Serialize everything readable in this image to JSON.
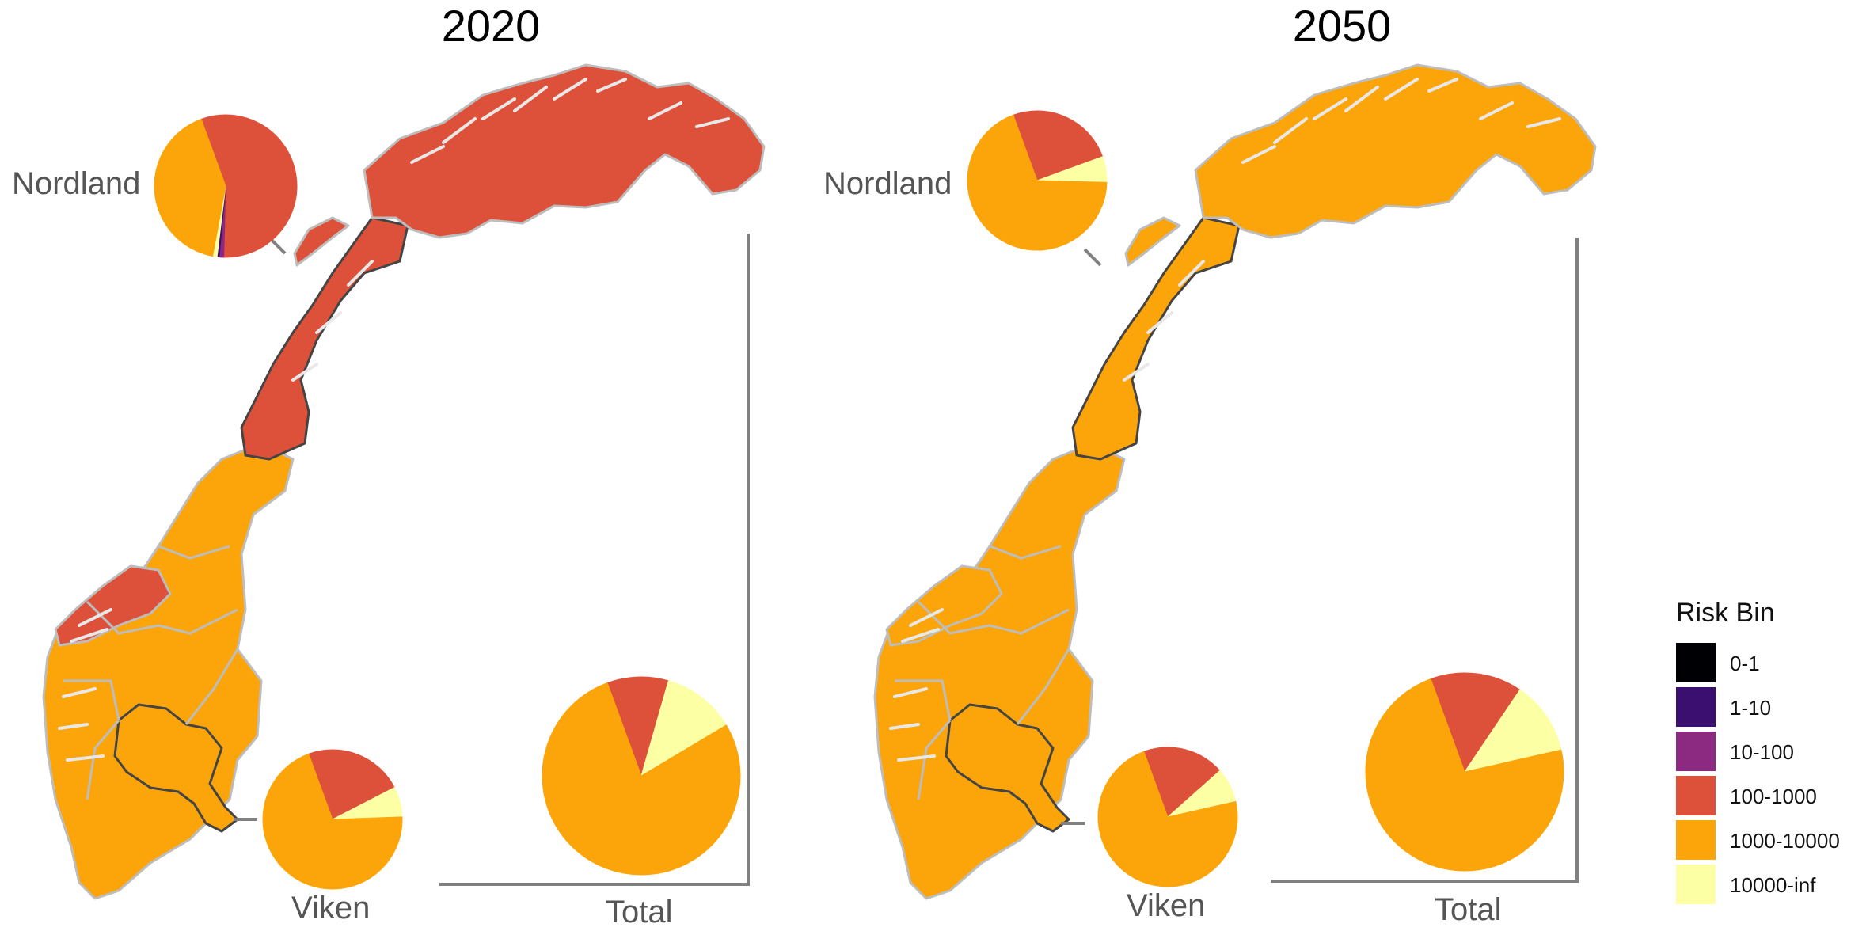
{
  "colors": {
    "0-1": "#000004",
    "1-10": "#3b0f70",
    "10-100": "#8c2981",
    "100-1000": "#dd513a",
    "1000-10000": "#fca50a",
    "10000-inf": "#fcffa4"
  },
  "panels": [
    {
      "title": "2020",
      "region_colors": {
        "north": "100-1000",
        "west_fjord": "100-1000",
        "rest": "1000-10000"
      },
      "pies": {
        "nordland": {
          "label": "Nordland",
          "slices": [
            {
              "bin": "100-1000",
              "fraction": 0.56
            },
            {
              "bin": "10-100",
              "fraction": 0.01
            },
            {
              "bin": "1-10",
              "fraction": 0.005
            },
            {
              "bin": "10000-inf",
              "fraction": 0.01
            },
            {
              "bin": "1000-10000",
              "fraction": 0.415
            }
          ]
        },
        "viken": {
          "label": "Viken",
          "slices": [
            {
              "bin": "100-1000",
              "fraction": 0.23
            },
            {
              "bin": "10000-inf",
              "fraction": 0.07
            },
            {
              "bin": "1000-10000",
              "fraction": 0.7
            }
          ]
        },
        "total": {
          "label": "Total",
          "slices": [
            {
              "bin": "100-1000",
              "fraction": 0.1
            },
            {
              "bin": "10000-inf",
              "fraction": 0.12
            },
            {
              "bin": "1000-10000",
              "fraction": 0.78
            }
          ]
        }
      }
    },
    {
      "title": "2050",
      "region_colors": {
        "north": "1000-10000",
        "west_fjord": "1000-10000",
        "rest": "1000-10000"
      },
      "pies": {
        "nordland": {
          "label": "Nordland",
          "slices": [
            {
              "bin": "100-1000",
              "fraction": 0.25
            },
            {
              "bin": "10000-inf",
              "fraction": 0.06
            },
            {
              "bin": "1000-10000",
              "fraction": 0.69
            }
          ]
        },
        "viken": {
          "label": "Viken",
          "slices": [
            {
              "bin": "100-1000",
              "fraction": 0.19
            },
            {
              "bin": "10000-inf",
              "fraction": 0.08
            },
            {
              "bin": "1000-10000",
              "fraction": 0.73
            }
          ]
        },
        "total": {
          "label": "Total",
          "slices": [
            {
              "bin": "100-1000",
              "fraction": 0.15
            },
            {
              "bin": "10000-inf",
              "fraction": 0.12
            },
            {
              "bin": "1000-10000",
              "fraction": 0.73
            }
          ]
        }
      }
    }
  ],
  "legend": {
    "title": "Risk Bin",
    "items": [
      {
        "label": "0-1",
        "bin": "0-1"
      },
      {
        "label": "1-10",
        "bin": "1-10"
      },
      {
        "label": "10-100",
        "bin": "10-100"
      },
      {
        "label": "100-1000",
        "bin": "100-1000"
      },
      {
        "label": "1000-10000",
        "bin": "1000-10000"
      },
      {
        "label": "10000-inf",
        "bin": "10000-inf"
      }
    ]
  }
}
